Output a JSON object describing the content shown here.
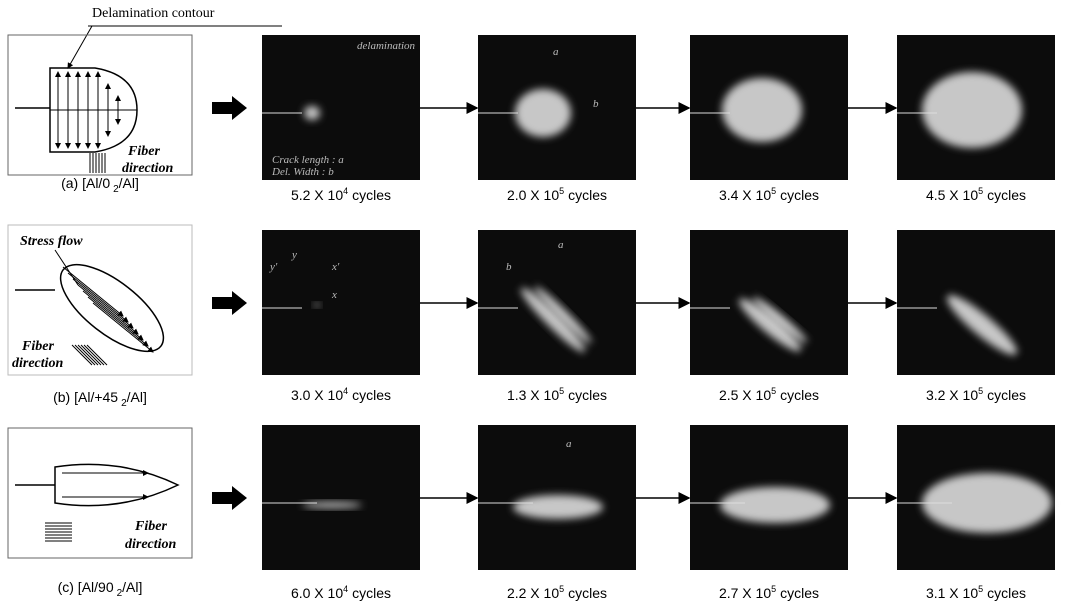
{
  "callout": "Delamination contour",
  "rows": [
    {
      "label": {
        "pre": "(a) [Al/0",
        "sub": "2",
        "post": "/Al]"
      },
      "schematic_texts": [
        "Fiber",
        "direction"
      ],
      "images": [
        {
          "caption": {
            "base": "5.2 X 10",
            "exp": "4",
            "unit": "cycles"
          },
          "annotations": [
            "delamination",
            "Crack length : a",
            "Del. Width : b"
          ]
        },
        {
          "caption": {
            "base": "2.0 X 10",
            "exp": "5",
            "unit": "cycles"
          },
          "annotations": [
            "a",
            "b"
          ]
        },
        {
          "caption": {
            "base": "3.4 X 10",
            "exp": "5",
            "unit": "cycles"
          },
          "annotations": []
        },
        {
          "caption": {
            "base": "4.5 X 10",
            "exp": "5",
            "unit": "cycles"
          },
          "annotations": []
        }
      ]
    },
    {
      "label": {
        "pre": "(b) [Al/+45",
        "sub": "2",
        "post": "/Al]"
      },
      "schematic_texts": [
        "Stress flow",
        "Fiber",
        "direction"
      ],
      "images": [
        {
          "caption": {
            "base": "3.0 X 10",
            "exp": "4",
            "unit": "cycles"
          },
          "annotations": [
            "y'",
            "y",
            "x'",
            "x"
          ]
        },
        {
          "caption": {
            "base": "1.3 X 10",
            "exp": "5",
            "unit": "cycles"
          },
          "annotations": [
            "a",
            "b"
          ]
        },
        {
          "caption": {
            "base": "2.5 X 10",
            "exp": "5",
            "unit": "cycles"
          },
          "annotations": []
        },
        {
          "caption": {
            "base": "3.2 X 10",
            "exp": "5",
            "unit": "cycles"
          },
          "annotations": []
        }
      ]
    },
    {
      "label": {
        "pre": "(c) [Al/90",
        "sub": "2",
        "post": "/Al]"
      },
      "schematic_texts": [
        "Fiber",
        "direction"
      ],
      "images": [
        {
          "caption": {
            "base": "6.0 X 10",
            "exp": "4",
            "unit": "cycles"
          },
          "annotations": []
        },
        {
          "caption": {
            "base": "2.2 X 10",
            "exp": "5",
            "unit": "cycles"
          },
          "annotations": [
            "a"
          ]
        },
        {
          "caption": {
            "base": "2.7 X 10",
            "exp": "5",
            "unit": "cycles"
          },
          "annotations": []
        },
        {
          "caption": {
            "base": "3.1 X 10",
            "exp": "5",
            "unit": "cycles"
          },
          "annotations": []
        }
      ]
    }
  ]
}
